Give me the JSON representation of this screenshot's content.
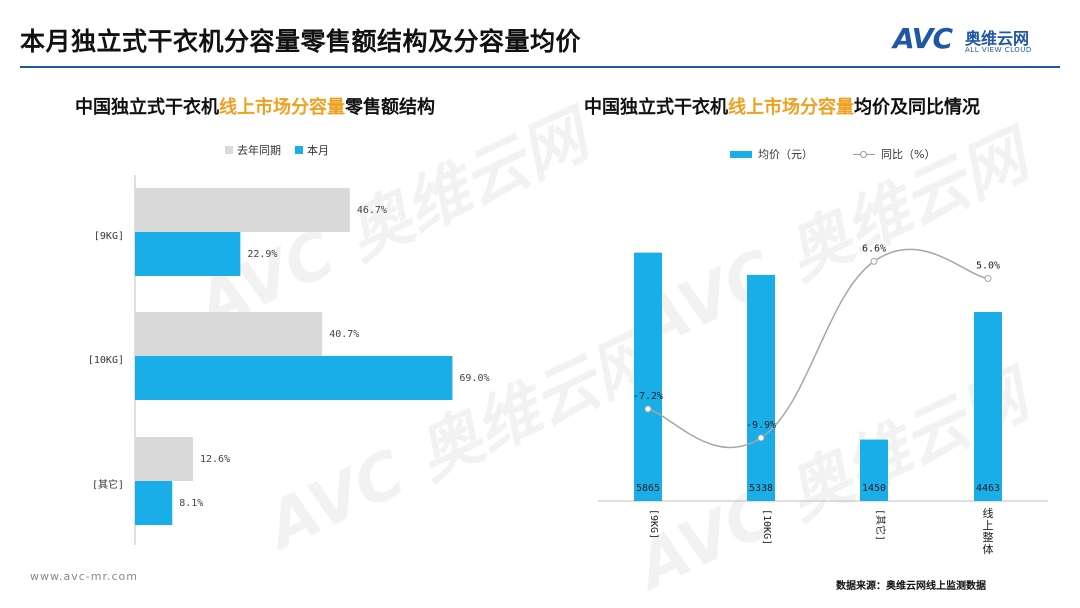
{
  "page": {
    "title": "本月独立式干衣机分容量零售额结构及分容量均价",
    "logo_main": "AVC",
    "logo_cn": "奥维云网",
    "logo_en": "ALL VIEW CLOUD",
    "footer_url": "www.avc-mr.com",
    "source": "数据来源：奥维云网线上监测数据"
  },
  "left_chart": {
    "title_prefix": "中国独立式干衣机",
    "title_highlight": "线上市场分容量",
    "title_suffix": "零售额结构"
  },
  "right_chart": {
    "title_prefix": "中国独立式干衣机",
    "title_highlight": "线上市场分容量",
    "title_suffix": "均价及同比情况"
  },
  "colors": {
    "last_year": "#d9d9d9",
    "this_month": "#1aaee8",
    "line": "#a6a6a6",
    "highlight": "#f0a020",
    "brand": "#1f56a8"
  },
  "chart_data": [
    {
      "type": "bar",
      "orientation": "horizontal",
      "categories": [
        "[9KG]",
        "[10KG]",
        "[其它]"
      ],
      "series": [
        {
          "name": "去年同期",
          "values": [
            46.7,
            40.7,
            12.6
          ],
          "labels": [
            "46.7%",
            "40.7%",
            "12.6%"
          ]
        },
        {
          "name": "本月",
          "values": [
            22.9,
            69.0,
            8.1
          ],
          "labels": [
            "22.9%",
            "69.0%",
            "8.1%"
          ]
        }
      ],
      "unit": "%",
      "legend": "top",
      "grid": false
    },
    {
      "type": "bar",
      "categories": [
        "[9KG]",
        "[10KG]",
        "[其它]",
        "线上整体"
      ],
      "bar_series": {
        "name": "均价（元）",
        "values": [
          5865,
          5338,
          1450,
          4463
        ],
        "labels": [
          "5865",
          "5338",
          "1450",
          "4463"
        ]
      },
      "line_series": {
        "name": "同比（%）",
        "values": [
          -7.2,
          -9.9,
          6.6,
          5.0
        ],
        "labels": [
          "-7.2%",
          "-9.9%",
          "6.6%",
          "5.0%"
        ]
      },
      "legend": "top",
      "grid": false
    }
  ]
}
